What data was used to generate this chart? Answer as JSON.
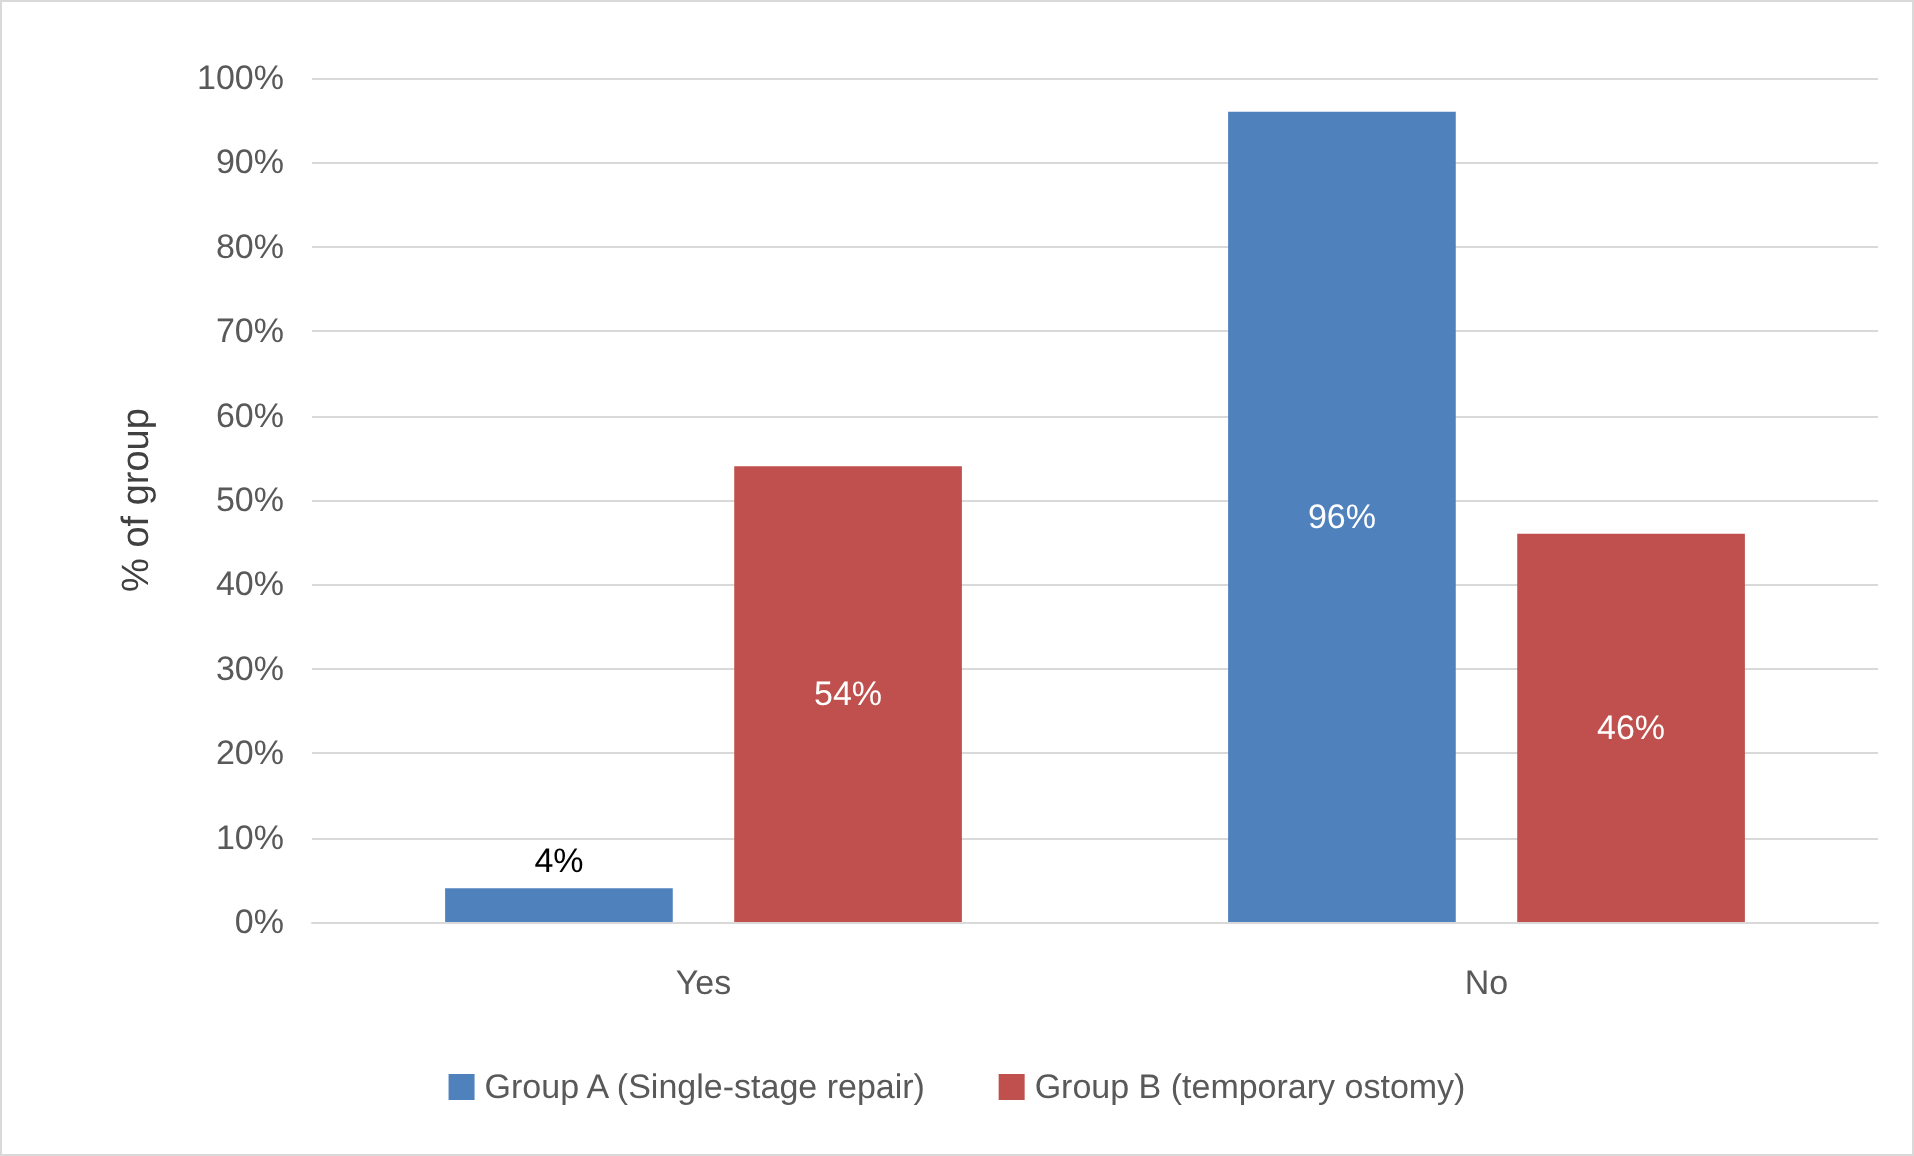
{
  "chart_data": {
    "type": "bar",
    "ylabel": "% of group",
    "categories": [
      "Yes",
      "No"
    ],
    "series": [
      {
        "name": "Group A (Single-stage repair)",
        "color": "#4f81bd",
        "values": [
          4,
          96
        ],
        "value_labels": [
          "4%",
          "96%"
        ]
      },
      {
        "name": "Group B (temporary ostomy)",
        "color": "#c0504d",
        "values": [
          54,
          46
        ],
        "value_labels": [
          "54%",
          "46%"
        ]
      }
    ],
    "ylim": [
      0,
      100
    ],
    "yticks": [
      {
        "value": 0,
        "label": "0%"
      },
      {
        "value": 10,
        "label": "10%"
      },
      {
        "value": 20,
        "label": "20%"
      },
      {
        "value": 30,
        "label": "30%"
      },
      {
        "value": 40,
        "label": "40%"
      },
      {
        "value": 50,
        "label": "50%"
      },
      {
        "value": 60,
        "label": "60%"
      },
      {
        "value": 70,
        "label": "70%"
      },
      {
        "value": 80,
        "label": "80%"
      },
      {
        "value": 90,
        "label": "90%"
      },
      {
        "value": 100,
        "label": "100%"
      }
    ],
    "grid": "y",
    "legend": "bottom"
  }
}
